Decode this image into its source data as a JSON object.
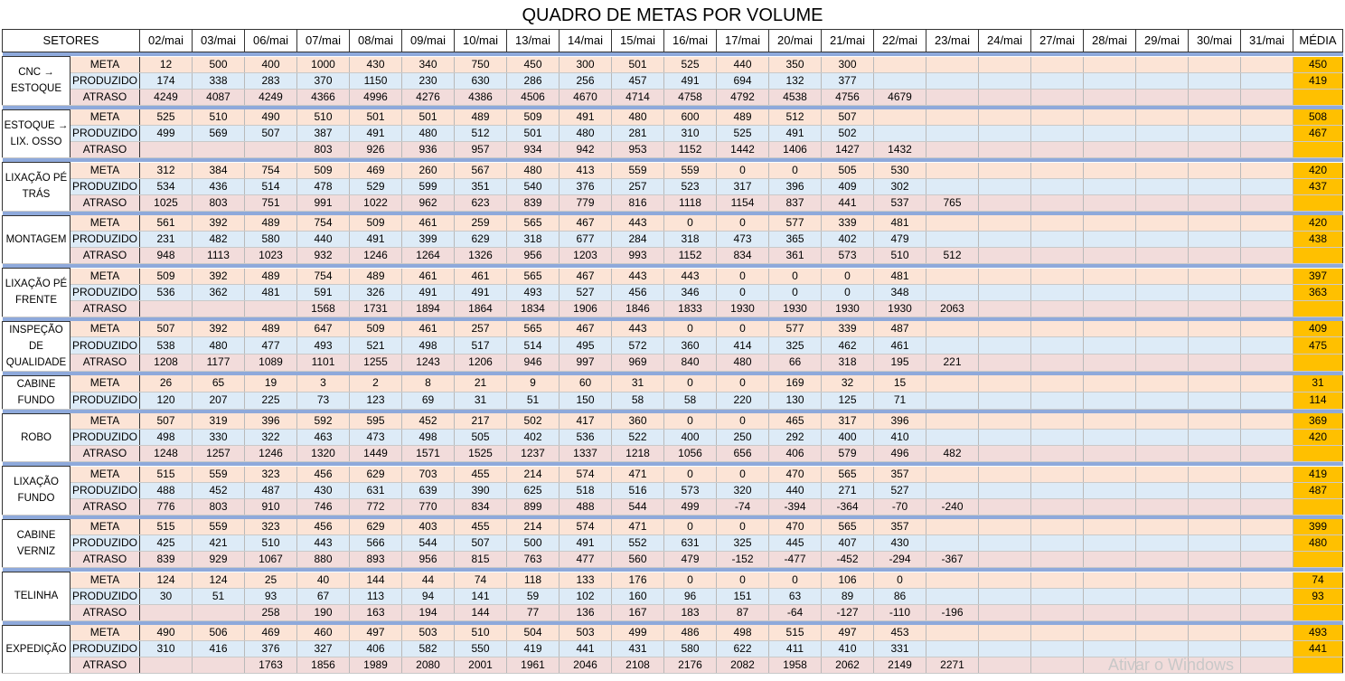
{
  "title": "QUADRO DE METAS POR VOLUME",
  "header": {
    "sector_label": "SETORES",
    "dates": [
      "02/mai",
      "03/mai",
      "06/mai",
      "07/mai",
      "08/mai",
      "09/mai",
      "10/mai",
      "13/mai",
      "14/mai",
      "15/mai",
      "16/mai",
      "17/mai",
      "20/mai",
      "21/mai",
      "22/mai",
      "23/mai",
      "24/mai",
      "27/mai",
      "28/mai",
      "29/mai",
      "30/mai",
      "31/mai"
    ],
    "avg_label": "MÉDIA"
  },
  "colors": {
    "meta_row": "#fce4d6",
    "produzido_row": "#ddebf7",
    "atraso_row": "#f2dcdb",
    "average_column": "#ffc000",
    "separator": "#8ea9db"
  },
  "sectors": [
    {
      "name": "CNC → ESTOQUE",
      "rows": [
        {
          "label": "META",
          "values": [
            "12",
            "500",
            "400",
            "1000",
            "430",
            "340",
            "750",
            "450",
            "300",
            "501",
            "525",
            "440",
            "350",
            "300",
            "",
            "",
            "",
            "",
            "",
            "",
            "",
            ""
          ],
          "avg": "450"
        },
        {
          "label": "PRODUZIDO",
          "values": [
            "174",
            "338",
            "283",
            "370",
            "1150",
            "230",
            "630",
            "286",
            "256",
            "457",
            "491",
            "694",
            "132",
            "377",
            "",
            "",
            "",
            "",
            "",
            "",
            "",
            ""
          ],
          "avg": "419"
        },
        {
          "label": "ATRASO",
          "values": [
            "4249",
            "4087",
            "4249",
            "4366",
            "4996",
            "4276",
            "4386",
            "4506",
            "4670",
            "4714",
            "4758",
            "4792",
            "4538",
            "4756",
            "4679",
            "",
            "",
            "",
            "",
            "",
            "",
            ""
          ],
          "avg": ""
        }
      ]
    },
    {
      "name": "ESTOQUE → LIX. OSSO",
      "rows": [
        {
          "label": "META",
          "values": [
            "525",
            "510",
            "490",
            "510",
            "501",
            "501",
            "489",
            "509",
            "491",
            "480",
            "600",
            "489",
            "512",
            "507",
            "",
            "",
            "",
            "",
            "",
            "",
            "",
            ""
          ],
          "avg": "508"
        },
        {
          "label": "PRODUZIDO",
          "values": [
            "499",
            "569",
            "507",
            "387",
            "491",
            "480",
            "512",
            "501",
            "480",
            "281",
            "310",
            "525",
            "491",
            "502",
            "",
            "",
            "",
            "",
            "",
            "",
            "",
            ""
          ],
          "avg": "467"
        },
        {
          "label": "ATRASO",
          "values": [
            "",
            "",
            "",
            "803",
            "926",
            "936",
            "957",
            "934",
            "942",
            "953",
            "1152",
            "1442",
            "1406",
            "1427",
            "1432",
            "",
            "",
            "",
            "",
            "",
            "",
            ""
          ],
          "avg": ""
        }
      ]
    },
    {
      "name": "LIXAÇÃO PÉ TRÁS",
      "rows": [
        {
          "label": "META",
          "values": [
            "312",
            "384",
            "754",
            "509",
            "469",
            "260",
            "567",
            "480",
            "413",
            "559",
            "559",
            "0",
            "0",
            "505",
            "530",
            "",
            "",
            "",
            "",
            "",
            "",
            ""
          ],
          "avg": "420"
        },
        {
          "label": "PRODUZIDO",
          "values": [
            "534",
            "436",
            "514",
            "478",
            "529",
            "599",
            "351",
            "540",
            "376",
            "257",
            "523",
            "317",
            "396",
            "409",
            "302",
            "",
            "",
            "",
            "",
            "",
            "",
            ""
          ],
          "avg": "437"
        },
        {
          "label": "ATRASO",
          "values": [
            "1025",
            "803",
            "751",
            "991",
            "1022",
            "962",
            "623",
            "839",
            "779",
            "816",
            "1118",
            "1154",
            "837",
            "441",
            "537",
            "765",
            "",
            "",
            "",
            "",
            "",
            ""
          ],
          "avg": ""
        }
      ]
    },
    {
      "name": "MONTAGEM",
      "rows": [
        {
          "label": "META",
          "values": [
            "561",
            "392",
            "489",
            "754",
            "509",
            "461",
            "259",
            "565",
            "467",
            "443",
            "0",
            "0",
            "577",
            "339",
            "481",
            "",
            "",
            "",
            "",
            "",
            "",
            ""
          ],
          "avg": "420"
        },
        {
          "label": "PRODUZIDO",
          "values": [
            "231",
            "482",
            "580",
            "440",
            "491",
            "399",
            "629",
            "318",
            "677",
            "284",
            "318",
            "473",
            "365",
            "402",
            "479",
            "",
            "",
            "",
            "",
            "",
            "",
            ""
          ],
          "avg": "438"
        },
        {
          "label": "ATRASO",
          "values": [
            "948",
            "1113",
            "1023",
            "932",
            "1246",
            "1264",
            "1326",
            "956",
            "1203",
            "993",
            "1152",
            "834",
            "361",
            "573",
            "510",
            "512",
            "",
            "",
            "",
            "",
            "",
            ""
          ],
          "avg": ""
        }
      ]
    },
    {
      "name": "LIXAÇÃO PÉ FRENTE",
      "rows": [
        {
          "label": "META",
          "values": [
            "509",
            "392",
            "489",
            "754",
            "489",
            "461",
            "461",
            "565",
            "467",
            "443",
            "443",
            "0",
            "0",
            "0",
            "481",
            "",
            "",
            "",
            "",
            "",
            "",
            ""
          ],
          "avg": "397"
        },
        {
          "label": "PRODUZIDO",
          "values": [
            "536",
            "362",
            "481",
            "591",
            "326",
            "491",
            "491",
            "493",
            "527",
            "456",
            "346",
            "0",
            "0",
            "0",
            "348",
            "",
            "",
            "",
            "",
            "",
            "",
            ""
          ],
          "avg": "363"
        },
        {
          "label": "ATRASO",
          "values": [
            "",
            "",
            "",
            "1568",
            "1731",
            "1894",
            "1864",
            "1834",
            "1906",
            "1846",
            "1833",
            "1930",
            "1930",
            "1930",
            "1930",
            "2063",
            "",
            "",
            "",
            "",
            "",
            ""
          ],
          "avg": ""
        }
      ]
    },
    {
      "name": "INSPEÇÃO DE QUALIDADE",
      "rows": [
        {
          "label": "META",
          "values": [
            "507",
            "392",
            "489",
            "647",
            "509",
            "461",
            "257",
            "565",
            "467",
            "443",
            "0",
            "0",
            "577",
            "339",
            "487",
            "",
            "",
            "",
            "",
            "",
            "",
            ""
          ],
          "avg": "409"
        },
        {
          "label": "PRODUZIDO",
          "values": [
            "538",
            "480",
            "477",
            "493",
            "521",
            "498",
            "517",
            "514",
            "495",
            "572",
            "360",
            "414",
            "325",
            "462",
            "461",
            "",
            "",
            "",
            "",
            "",
            "",
            ""
          ],
          "avg": "475"
        },
        {
          "label": "ATRASO",
          "values": [
            "1208",
            "1177",
            "1089",
            "1101",
            "1255",
            "1243",
            "1206",
            "946",
            "997",
            "969",
            "840",
            "480",
            "66",
            "318",
            "195",
            "221",
            "",
            "",
            "",
            "",
            "",
            ""
          ],
          "avg": ""
        }
      ]
    },
    {
      "name": "CABINE FUNDO",
      "rows": [
        {
          "label": "META",
          "values": [
            "26",
            "65",
            "19",
            "3",
            "2",
            "8",
            "21",
            "9",
            "60",
            "31",
            "0",
            "0",
            "169",
            "32",
            "15",
            "",
            "",
            "",
            "",
            "",
            "",
            ""
          ],
          "avg": "31"
        },
        {
          "label": "PRODUZIDO",
          "values": [
            "120",
            "207",
            "225",
            "73",
            "123",
            "69",
            "31",
            "51",
            "150",
            "58",
            "58",
            "220",
            "130",
            "125",
            "71",
            "",
            "",
            "",
            "",
            "",
            "",
            ""
          ],
          "avg": "114"
        }
      ]
    },
    {
      "name": "ROBO",
      "rows": [
        {
          "label": "META",
          "values": [
            "507",
            "319",
            "396",
            "592",
            "595",
            "452",
            "217",
            "502",
            "417",
            "360",
            "0",
            "0",
            "465",
            "317",
            "396",
            "",
            "",
            "",
            "",
            "",
            "",
            ""
          ],
          "avg": "369"
        },
        {
          "label": "PRODUZIDO",
          "values": [
            "498",
            "330",
            "322",
            "463",
            "473",
            "498",
            "505",
            "402",
            "536",
            "522",
            "400",
            "250",
            "292",
            "400",
            "410",
            "",
            "",
            "",
            "",
            "",
            "",
            ""
          ],
          "avg": "420"
        },
        {
          "label": "ATRASO",
          "values": [
            "1248",
            "1257",
            "1246",
            "1320",
            "1449",
            "1571",
            "1525",
            "1237",
            "1337",
            "1218",
            "1056",
            "656",
            "406",
            "579",
            "496",
            "482",
            "",
            "",
            "",
            "",
            "",
            ""
          ],
          "avg": ""
        }
      ]
    },
    {
      "name": "LIXAÇÃO FUNDO",
      "rows": [
        {
          "label": "META",
          "values": [
            "515",
            "559",
            "323",
            "456",
            "629",
            "703",
            "455",
            "214",
            "574",
            "471",
            "0",
            "0",
            "470",
            "565",
            "357",
            "",
            "",
            "",
            "",
            "",
            "",
            ""
          ],
          "avg": "419"
        },
        {
          "label": "PRODUZIDO",
          "values": [
            "488",
            "452",
            "487",
            "430",
            "631",
            "639",
            "390",
            "625",
            "518",
            "516",
            "573",
            "320",
            "440",
            "271",
            "527",
            "",
            "",
            "",
            "",
            "",
            "",
            ""
          ],
          "avg": "487"
        },
        {
          "label": "ATRASO",
          "values": [
            "776",
            "803",
            "910",
            "746",
            "772",
            "770",
            "834",
            "899",
            "488",
            "544",
            "499",
            "-74",
            "-394",
            "-364",
            "-70",
            "-240",
            "",
            "",
            "",
            "",
            "",
            ""
          ],
          "avg": ""
        }
      ]
    },
    {
      "name": "CABINE VERNIZ",
      "rows": [
        {
          "label": "META",
          "values": [
            "515",
            "559",
            "323",
            "456",
            "629",
            "403",
            "455",
            "214",
            "574",
            "471",
            "0",
            "0",
            "470",
            "565",
            "357",
            "",
            "",
            "",
            "",
            "",
            "",
            ""
          ],
          "avg": "399"
        },
        {
          "label": "PRODUZIDO",
          "values": [
            "425",
            "421",
            "510",
            "443",
            "566",
            "544",
            "507",
            "500",
            "491",
            "552",
            "631",
            "325",
            "445",
            "407",
            "430",
            "",
            "",
            "",
            "",
            "",
            "",
            ""
          ],
          "avg": "480"
        },
        {
          "label": "ATRASO",
          "values": [
            "839",
            "929",
            "1067",
            "880",
            "893",
            "956",
            "815",
            "763",
            "477",
            "560",
            "479",
            "-152",
            "-477",
            "-452",
            "-294",
            "-367",
            "",
            "",
            "",
            "",
            "",
            ""
          ],
          "avg": ""
        }
      ]
    },
    {
      "name": "TELINHA",
      "rows": [
        {
          "label": "META",
          "values": [
            "124",
            "124",
            "25",
            "40",
            "144",
            "44",
            "74",
            "118",
            "133",
            "176",
            "0",
            "0",
            "0",
            "106",
            "0",
            "",
            "",
            "",
            "",
            "",
            "",
            ""
          ],
          "avg": "74"
        },
        {
          "label": "PRODUZIDO",
          "values": [
            "30",
            "51",
            "93",
            "67",
            "113",
            "94",
            "141",
            "59",
            "102",
            "160",
            "96",
            "151",
            "63",
            "89",
            "86",
            "",
            "",
            "",
            "",
            "",
            "",
            ""
          ],
          "avg": "93"
        },
        {
          "label": "ATRASO",
          "values": [
            "",
            "",
            "258",
            "190",
            "163",
            "194",
            "144",
            "77",
            "136",
            "167",
            "183",
            "87",
            "-64",
            "-127",
            "-110",
            "-196",
            "",
            "",
            "",
            "",
            "",
            ""
          ],
          "avg": ""
        }
      ]
    },
    {
      "name": "EXPEDIÇÃO",
      "rows": [
        {
          "label": "META",
          "values": [
            "490",
            "506",
            "469",
            "460",
            "497",
            "503",
            "510",
            "504",
            "503",
            "499",
            "486",
            "498",
            "515",
            "497",
            "453",
            "",
            "",
            "",
            "",
            "",
            "",
            ""
          ],
          "avg": "493"
        },
        {
          "label": "PRODUZIDO",
          "values": [
            "310",
            "416",
            "376",
            "327",
            "406",
            "582",
            "550",
            "419",
            "441",
            "431",
            "580",
            "622",
            "411",
            "410",
            "331",
            "",
            "",
            "",
            "",
            "",
            "",
            ""
          ],
          "avg": "441"
        },
        {
          "label": "ATRASO",
          "values": [
            "",
            "",
            "1763",
            "1856",
            "1989",
            "2080",
            "2001",
            "1961",
            "2046",
            "2108",
            "2176",
            "2082",
            "1958",
            "2062",
            "2149",
            "2271",
            "",
            "",
            "",
            "",
            "",
            ""
          ],
          "avg": ""
        }
      ]
    }
  ],
  "watermark": "Ativar o Windows"
}
